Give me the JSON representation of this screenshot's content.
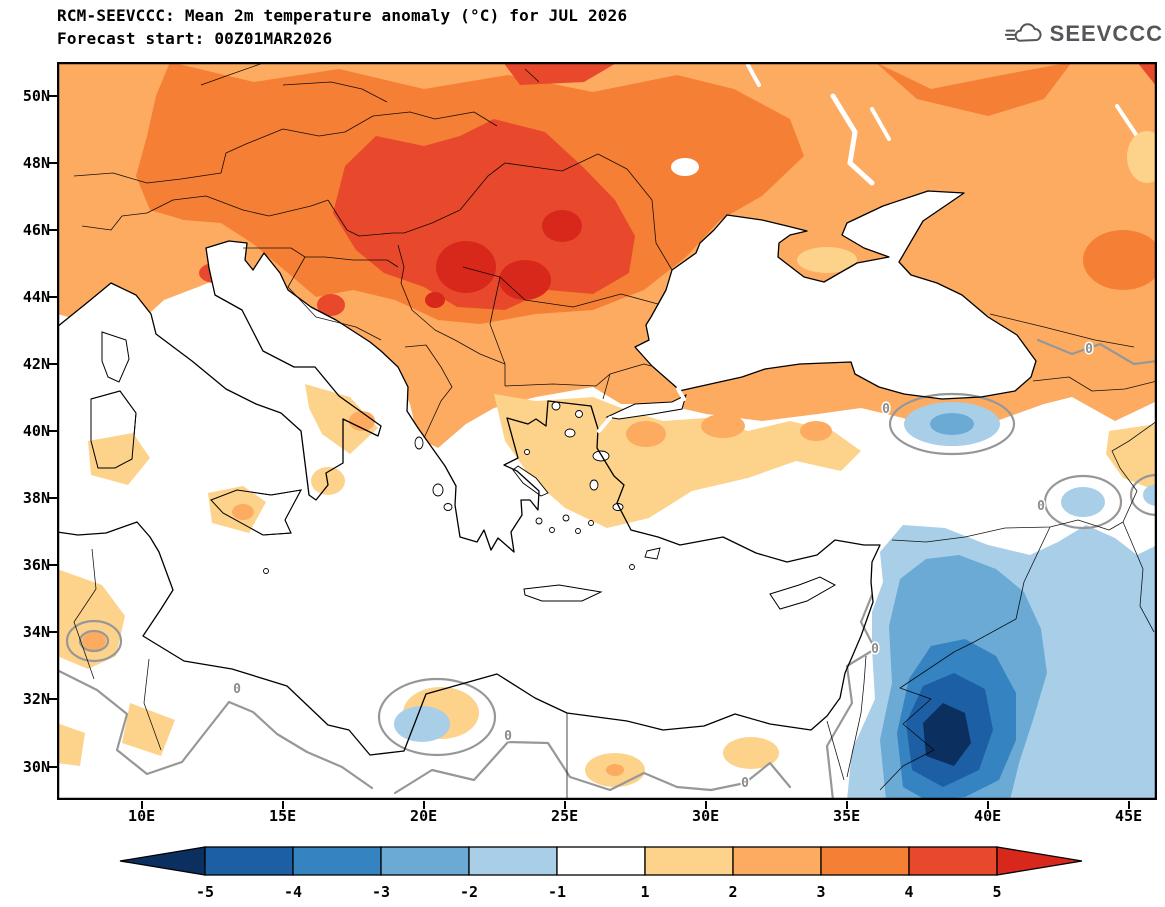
{
  "header": {
    "title_line1": "RCM-SEEVCCC: Mean 2m temperature anomaly (°C) for JUL 2026",
    "title_line2": "Forecast start: 00Z01MAR2026"
  },
  "logo": {
    "text": "SEEVCCC"
  },
  "map": {
    "y_ticks": [
      "50N",
      "48N",
      "46N",
      "44N",
      "42N",
      "40N",
      "38N",
      "36N",
      "34N",
      "32N",
      "30N"
    ],
    "x_ticks": [
      "10E",
      "15E",
      "20E",
      "25E",
      "30E",
      "35E",
      "40E",
      "45E"
    ],
    "contour_label": "0"
  },
  "colorbar": {
    "labels": [
      "-5",
      "-4",
      "-3",
      "-2",
      "-1",
      "1",
      "2",
      "3",
      "4",
      "5"
    ],
    "colors": [
      "#0b3060",
      "#1d5fa5",
      "#3583c0",
      "#6aaad5",
      "#a8cee8",
      "#ffffff",
      "#fdd38b",
      "#fcab60",
      "#f57f35",
      "#e8492d",
      "#d8271b"
    ]
  },
  "chart_data": {
    "type": "filled_contour_map",
    "title": "RCM-SEEVCCC: Mean 2m temperature anomaly (°C) for JUL 2026",
    "forecast_start": "00Z01MAR2026",
    "variable": "Mean 2m temperature anomaly",
    "units": "°C",
    "lon_range_deg_e": [
      7,
      46
    ],
    "lat_range_deg_n": [
      29,
      51
    ],
    "contour_levels_c": [
      -5,
      -4,
      -3,
      -2,
      -1,
      1,
      2,
      3,
      4,
      5
    ],
    "zero_contour_shown": true,
    "features": [
      {
        "region": "Central Europe / Pannonian basin / Carpathians (16-28E, 43-49N)",
        "anomaly_c": "+4 to +5, local max > +5 over Serbia/Romania"
      },
      {
        "region": "Most of continental Europe north of 42N",
        "anomaly_c": "+2 to +4"
      },
      {
        "region": "North Aegean / NW Anatolia",
        "anomaly_c": "+1 to +2 with +2 to +3 patches"
      },
      {
        "region": "Mediterranean and Black Sea waters",
        "anomaly_c": "-1 to +1 (white)"
      },
      {
        "region": "North Africa (Tunisia, Libya, Egypt) patches",
        "anomaly_c": "+1 to +2 with small +2 spots"
      },
      {
        "region": "Syria / northern Iraq",
        "anomaly_c": "-3 to -5, local min < -5 near 38-39E, 30-32N"
      },
      {
        "region": "NE Anatolia spot (37-40E, ~40N)",
        "anomaly_c": "-1 to -2"
      },
      {
        "region": "SE Turkey / N Iraq border and Levant margin",
        "anomaly_c": "-1 with 0-line on gray contour"
      }
    ]
  }
}
